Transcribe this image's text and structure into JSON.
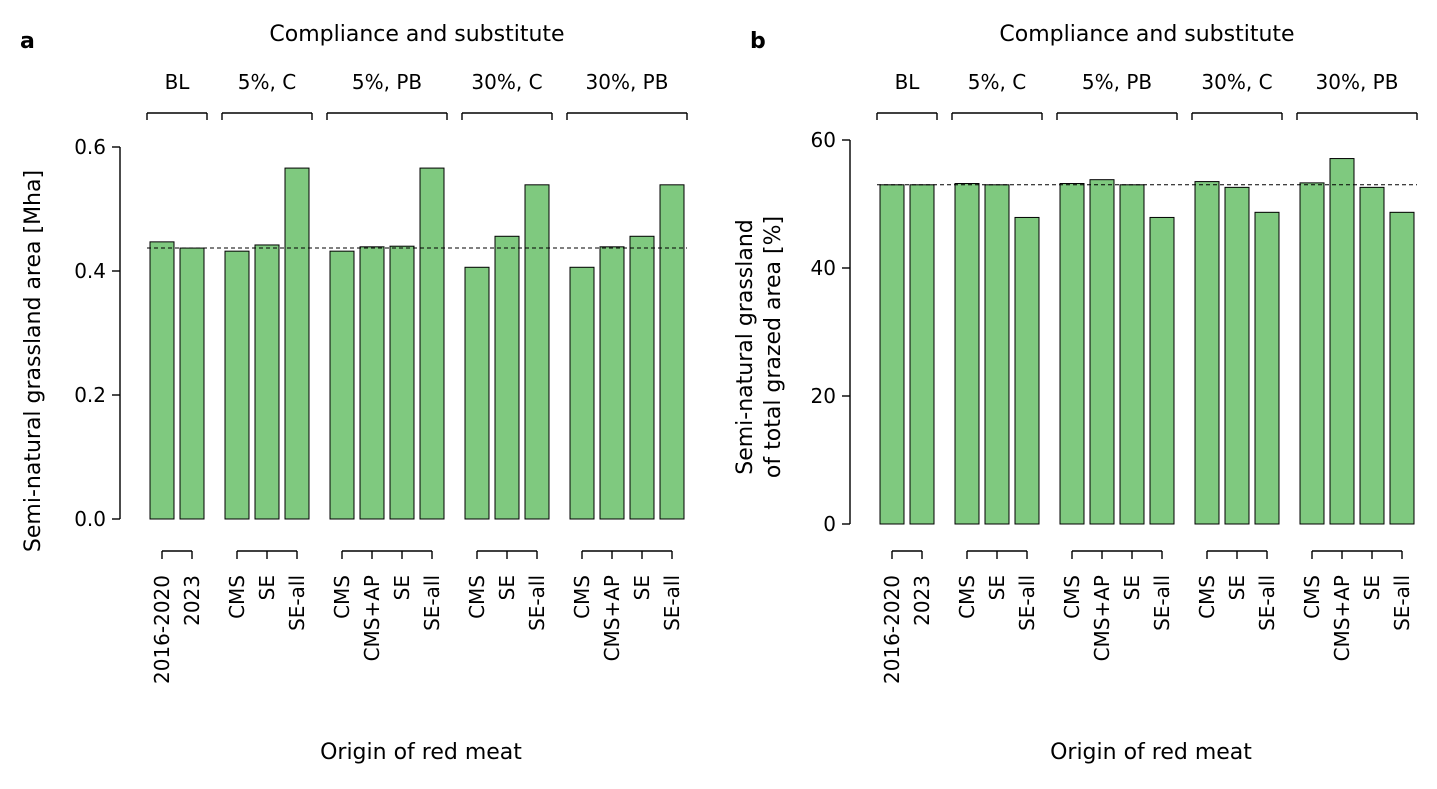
{
  "chart_data": [
    {
      "panel_label": "a",
      "type": "bar",
      "title": "Compliance and substitute",
      "xlabel": "Origin of red meat",
      "ylabel": "Semi-natural grassland area [Mha]",
      "ylim": [
        0,
        0.6
      ],
      "yticks": [
        "0.0",
        "0.2",
        "0.4",
        "0.6"
      ],
      "ytick_values": [
        0,
        0.2,
        0.4,
        0.6
      ],
      "reference_line": 0.437,
      "bar_color": "#7fc97f",
      "groups": [
        {
          "label": "BL",
          "categories": [
            "2016-2020",
            "2023"
          ],
          "values": [
            0.447,
            0.437
          ]
        },
        {
          "label": "5%, C",
          "categories": [
            "CMS",
            "SE",
            "SE-all"
          ],
          "values": [
            0.432,
            0.442,
            0.566
          ]
        },
        {
          "label": "5%, PB",
          "categories": [
            "CMS",
            "CMS+AP",
            "SE",
            "SE-all"
          ],
          "values": [
            0.432,
            0.439,
            0.44,
            0.566
          ]
        },
        {
          "label": "30%, C",
          "categories": [
            "CMS",
            "SE",
            "SE-all"
          ],
          "values": [
            0.406,
            0.456,
            0.539
          ]
        },
        {
          "label": "30%, PB",
          "categories": [
            "CMS",
            "CMS+AP",
            "SE",
            "SE-all"
          ],
          "values": [
            0.406,
            0.439,
            0.456,
            0.539
          ]
        }
      ]
    },
    {
      "panel_label": "b",
      "type": "bar",
      "title": "Compliance and substitute",
      "xlabel": "Origin of red meat",
      "ylabel": [
        "Semi-natural grassland",
        "of total grazed area [%]"
      ],
      "ylim": [
        0,
        60
      ],
      "yticks": [
        "0",
        "20",
        "40",
        "60"
      ],
      "ytick_values": [
        0,
        20,
        40,
        60
      ],
      "reference_line": 53.0,
      "bar_color": "#7fc97f",
      "groups": [
        {
          "label": "BL",
          "categories": [
            "2016-2020",
            "2023"
          ],
          "values": [
            53.0,
            53.0
          ]
        },
        {
          "label": "5%, C",
          "categories": [
            "CMS",
            "SE",
            "SE-all"
          ],
          "values": [
            53.2,
            53.0,
            47.9
          ]
        },
        {
          "label": "5%, PB",
          "categories": [
            "CMS",
            "CMS+AP",
            "SE",
            "SE-all"
          ],
          "values": [
            53.2,
            53.8,
            53.0,
            47.9
          ]
        },
        {
          "label": "30%, C",
          "categories": [
            "CMS",
            "SE",
            "SE-all"
          ],
          "values": [
            53.5,
            52.6,
            48.7
          ]
        },
        {
          "label": "30%, PB",
          "categories": [
            "CMS",
            "CMS+AP",
            "SE",
            "SE-all"
          ],
          "values": [
            53.3,
            57.1,
            52.6,
            48.7
          ]
        }
      ]
    }
  ]
}
